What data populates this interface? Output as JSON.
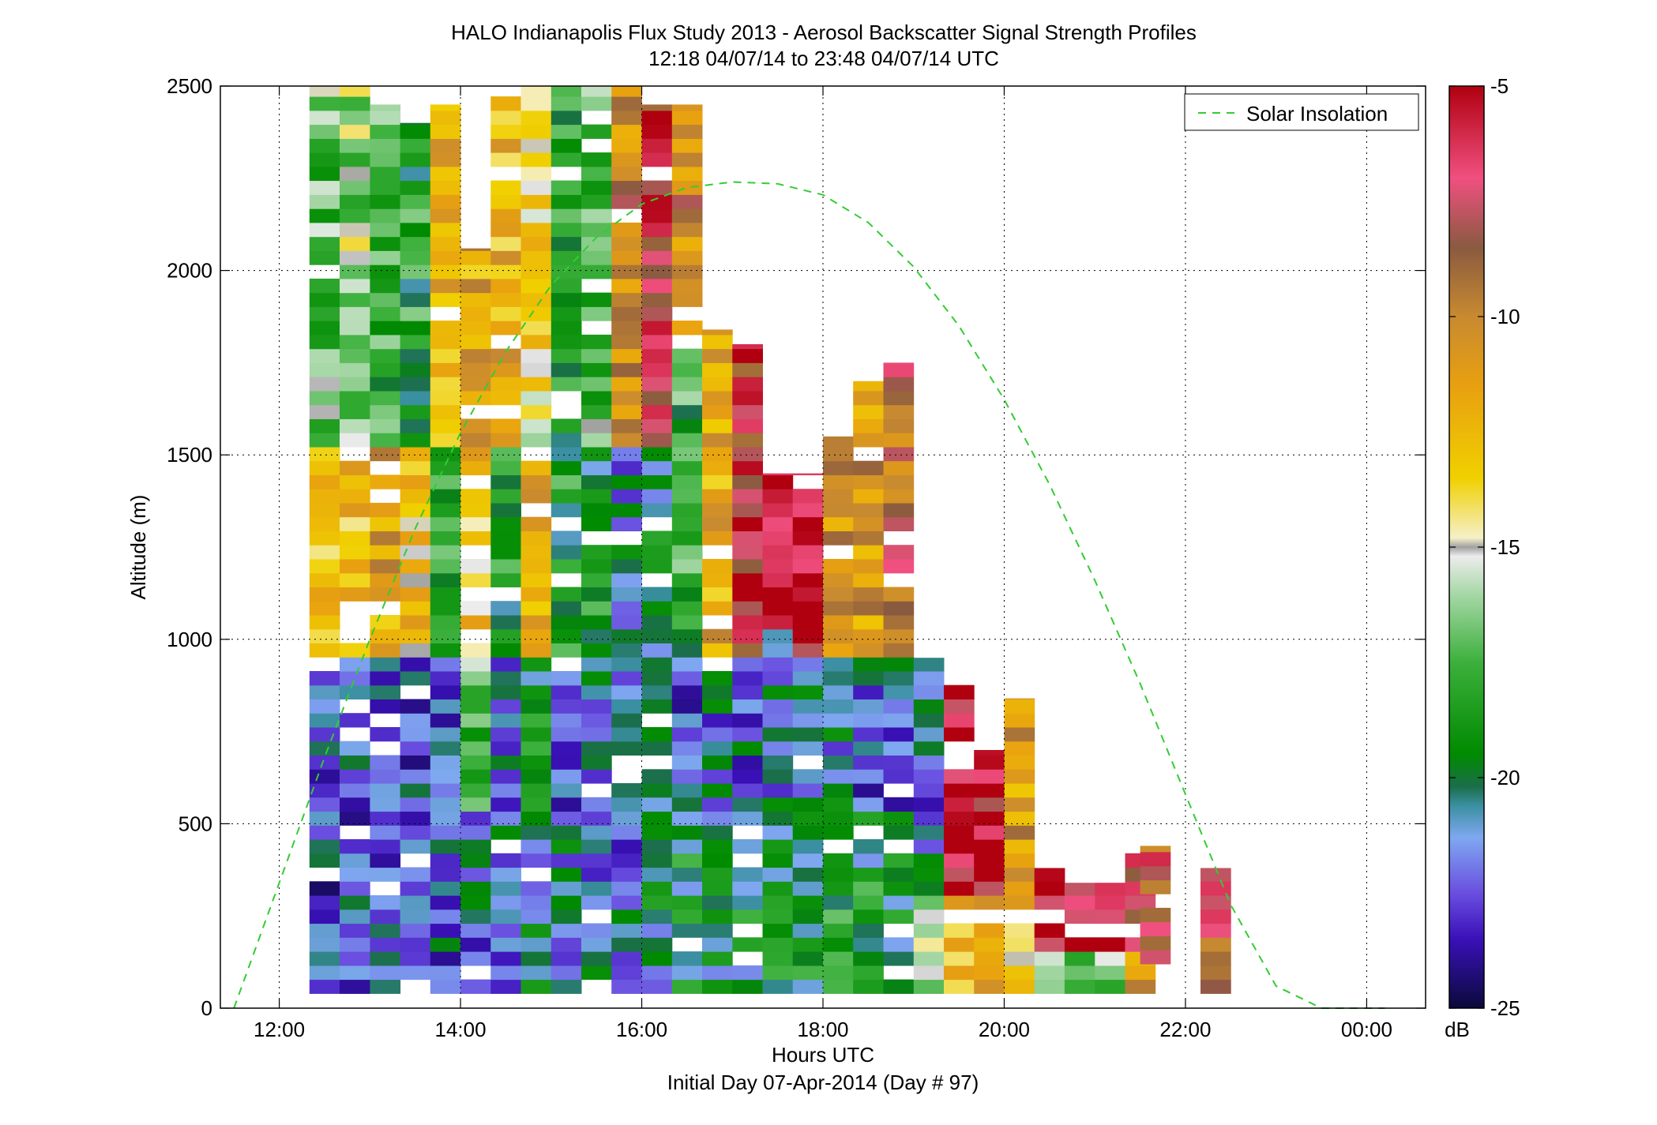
{
  "figure": {
    "title_line1": "HALO Indianapolis Flux Study 2013 - Aerosol Backscatter Signal Strength Profiles",
    "title_line2": "12:18 04/07/14 to 23:48 04/07/14  UTC",
    "xlabel": "Hours UTC",
    "xlabel2": "Initial Day 07-Apr-2014 (Day # 97)",
    "ylabel": "Altitude (m)",
    "legend_label": "Solar Insolation",
    "colorbar_unit": "dB"
  },
  "chart_data": {
    "type": "heatmap",
    "title": "HALO Indianapolis Flux Study 2013 - Aerosol Backscatter Signal Strength Profiles",
    "subtitle": "12:18 04/07/14 to 23:48 04/07/14  UTC",
    "xlabel": "Hours UTC",
    "ylabel": "Altitude (m)",
    "x_unit": "hours UTC (decimal, 24 = 00:00 next day)",
    "xlim": [
      11.35,
      24.65
    ],
    "ylim": [
      0,
      2500
    ],
    "x_ticks": [
      12,
      14,
      16,
      18,
      20,
      22,
      24
    ],
    "x_tick_labels": [
      "12:00",
      "14:00",
      "16:00",
      "18:00",
      "20:00",
      "22:00",
      "00:00"
    ],
    "y_ticks": [
      0,
      500,
      1000,
      1500,
      2000,
      2500
    ],
    "y_tick_labels": [
      "0",
      "500",
      "1000",
      "1500",
      "2000",
      "2500"
    ],
    "grid": true,
    "colorbar": {
      "label": "dB",
      "min": -25,
      "max": -5,
      "ticks": [
        -25,
        -20,
        -15,
        -10,
        -5
      ],
      "stops": [
        {
          "v": -25,
          "c": "#0a0a3a"
        },
        {
          "v": -23.5,
          "c": "#3a10b8"
        },
        {
          "v": -22.5,
          "c": "#6a4fe0"
        },
        {
          "v": -21.3,
          "c": "#7fa8f0"
        },
        {
          "v": -20.6,
          "c": "#3a8fa0"
        },
        {
          "v": -20.2,
          "c": "#1b6e4a"
        },
        {
          "v": -19.5,
          "c": "#008a00"
        },
        {
          "v": -17.5,
          "c": "#3cb03c"
        },
        {
          "v": -16,
          "c": "#a8d8a8"
        },
        {
          "v": -15.2,
          "c": "#ececec"
        },
        {
          "v": -15.0,
          "c": "#a0a0a0"
        },
        {
          "v": -14.8,
          "c": "#f5f0c8"
        },
        {
          "v": -13.5,
          "c": "#f0d000"
        },
        {
          "v": -11.5,
          "c": "#e8a010"
        },
        {
          "v": -10,
          "c": "#c88a30"
        },
        {
          "v": -8.5,
          "c": "#8a5a40"
        },
        {
          "v": -7,
          "c": "#f05080"
        },
        {
          "v": -5,
          "c": "#b00010"
        }
      ]
    },
    "bin_width_hours": 0.3333,
    "bin_height_m": 38,
    "ranges": [
      {
        "x": 12.5,
        "ytop": 2500,
        "ybot": 40,
        "seed": 1,
        "regions": [
          [
            500,
            -22.3
          ],
          [
            950,
            -22.3
          ],
          [
            1500,
            -13
          ],
          [
            2500,
            -17
          ]
        ]
      },
      {
        "x": 12.833,
        "ytop": 2500,
        "ybot": 40,
        "seed": 2,
        "regions": [
          [
            500,
            -22.2
          ],
          [
            950,
            -22
          ],
          [
            1500,
            -12.5
          ],
          [
            2500,
            -16
          ]
        ]
      },
      {
        "x": 13.167,
        "ytop": 2450,
        "ybot": 40,
        "seed": 3,
        "regions": [
          [
            500,
            -22.3
          ],
          [
            950,
            -22.2
          ],
          [
            1500,
            -11.5
          ],
          [
            2500,
            -18
          ]
        ]
      },
      {
        "x": 13.5,
        "ytop": 2400,
        "ybot": 40,
        "seed": 4,
        "regions": [
          [
            500,
            -22
          ],
          [
            950,
            -22
          ],
          [
            1500,
            -13
          ],
          [
            2500,
            -18.5
          ]
        ]
      },
      {
        "x": 13.833,
        "ytop": 2450,
        "ybot": 40,
        "seed": 5,
        "regions": [
          [
            500,
            -21.8
          ],
          [
            950,
            -22.3
          ],
          [
            1500,
            -18
          ],
          [
            2500,
            -12
          ]
        ]
      },
      {
        "x": 14.167,
        "ytop": 2060,
        "ybot": 40,
        "seed": 6,
        "regions": [
          [
            500,
            -21.5
          ],
          [
            950,
            -17
          ],
          [
            1500,
            -13
          ],
          [
            2100,
            -11.5
          ]
        ]
      },
      {
        "x": 14.5,
        "ytop": 2500,
        "ybot": 40,
        "seed": 7,
        "regions": [
          [
            500,
            -21.5
          ],
          [
            950,
            -22
          ],
          [
            1500,
            -19
          ],
          [
            2500,
            -12
          ]
        ]
      },
      {
        "x": 14.833,
        "ytop": 2500,
        "ybot": 40,
        "seed": 8,
        "regions": [
          [
            500,
            -20.5
          ],
          [
            950,
            -19.5
          ],
          [
            1500,
            -12
          ],
          [
            2500,
            -14
          ]
        ]
      },
      {
        "x": 15.167,
        "ytop": 2500,
        "ybot": 40,
        "seed": 9,
        "regions": [
          [
            500,
            -21.3
          ],
          [
            950,
            -22
          ],
          [
            1500,
            -19
          ],
          [
            2500,
            -19
          ]
        ]
      },
      {
        "x": 15.5,
        "ytop": 2500,
        "ybot": 40,
        "seed": 10,
        "regions": [
          [
            500,
            -21
          ],
          [
            950,
            -21.5
          ],
          [
            1500,
            -19
          ],
          [
            2500,
            -17
          ]
        ]
      },
      {
        "x": 15.833,
        "ytop": 2500,
        "ybot": 40,
        "seed": 11,
        "regions": [
          [
            500,
            -21.5
          ],
          [
            950,
            -21.8
          ],
          [
            1500,
            -21
          ],
          [
            2500,
            -10
          ]
        ]
      },
      {
        "x": 16.167,
        "ytop": 2450,
        "ybot": 40,
        "seed": 12,
        "regions": [
          [
            500,
            -20.5
          ],
          [
            950,
            -21.5
          ],
          [
            1500,
            -20
          ],
          [
            2500,
            -7
          ]
        ]
      },
      {
        "x": 16.5,
        "ytop": 2450,
        "ybot": 40,
        "seed": 13,
        "regions": [
          [
            500,
            -19.5
          ],
          [
            950,
            -21.8
          ],
          [
            1800,
            -18
          ],
          [
            2450,
            -10
          ]
        ]
      },
      {
        "x": 16.833,
        "ytop": 1840,
        "ybot": 40,
        "seed": 14,
        "regions": [
          [
            500,
            -19.8
          ],
          [
            950,
            -21.5
          ],
          [
            1840,
            -12
          ]
        ]
      },
      {
        "x": 17.167,
        "ytop": 1800,
        "ybot": 40,
        "seed": 15,
        "regions": [
          [
            500,
            -19.5
          ],
          [
            950,
            -21.5
          ],
          [
            1800,
            -7
          ]
        ]
      },
      {
        "x": 17.5,
        "ytop": 1450,
        "ybot": 40,
        "seed": 16,
        "regions": [
          [
            500,
            -19.5
          ],
          [
            1000,
            -21
          ],
          [
            1450,
            -5.5
          ]
        ]
      },
      {
        "x": 17.833,
        "ytop": 1450,
        "ybot": 40,
        "seed": 17,
        "regions": [
          [
            500,
            -19.2
          ],
          [
            950,
            -20.5
          ],
          [
            1450,
            -6
          ]
        ]
      },
      {
        "x": 18.167,
        "ytop": 1550,
        "ybot": 40,
        "seed": 18,
        "regions": [
          [
            500,
            -19
          ],
          [
            950,
            -21
          ],
          [
            1550,
            -11
          ]
        ]
      },
      {
        "x": 18.5,
        "ytop": 1700,
        "ybot": 40,
        "seed": 19,
        "regions": [
          [
            500,
            -19.3
          ],
          [
            950,
            -21.8
          ],
          [
            1700,
            -11
          ]
        ]
      },
      {
        "x": 18.833,
        "ytop": 1750,
        "ybot": 40,
        "seed": 20,
        "regions": [
          [
            500,
            -19.5
          ],
          [
            950,
            -21.6
          ],
          [
            1750,
            -9
          ]
        ]
      },
      {
        "x": 19.167,
        "ytop": 950,
        "ybot": 40,
        "seed": 21,
        "regions": [
          [
            300,
            -16
          ],
          [
            950,
            -21.5
          ]
        ]
      },
      {
        "x": 19.5,
        "ytop": 880,
        "ybot": 40,
        "seed": 22,
        "regions": [
          [
            300,
            -12
          ],
          [
            880,
            -5.5
          ]
        ]
      },
      {
        "x": 19.833,
        "ytop": 700,
        "ybot": 40,
        "seed": 23,
        "regions": [
          [
            300,
            -12
          ],
          [
            700,
            -6
          ]
        ]
      },
      {
        "x": 20.167,
        "ytop": 840,
        "ybot": 40,
        "seed": 24,
        "regions": [
          [
            300,
            -13
          ],
          [
            840,
            -11
          ]
        ]
      },
      {
        "x": 20.5,
        "ytop": 380,
        "ybot": 40,
        "seed": 25,
        "regions": [
          [
            150,
            -16
          ],
          [
            380,
            -5.5
          ]
        ]
      },
      {
        "x": 20.833,
        "ytop": 340,
        "ybot": 40,
        "seed": 26,
        "regions": [
          [
            150,
            -16.5
          ],
          [
            340,
            -5.5
          ]
        ]
      },
      {
        "x": 21.167,
        "ytop": 340,
        "ybot": 40,
        "seed": 27,
        "regions": [
          [
            150,
            -16
          ],
          [
            340,
            -5.5
          ]
        ]
      },
      {
        "x": 21.5,
        "ytop": 420,
        "ybot": 40,
        "seed": 28,
        "regions": [
          [
            150,
            -11
          ],
          [
            420,
            -7
          ]
        ]
      },
      {
        "x": 21.667,
        "ytop": 440,
        "ybot": 120,
        "seed": 29,
        "regions": [
          [
            440,
            -8
          ]
        ]
      },
      {
        "x": 22.333,
        "ytop": 380,
        "ybot": 40,
        "seed": 30,
        "regions": [
          [
            380,
            -8
          ]
        ]
      }
    ],
    "series": [
      {
        "name": "Solar Insolation",
        "style": "dashed",
        "color": "#33cc33",
        "x": [
          11.5,
          12.0,
          12.5,
          13.0,
          13.5,
          14.0,
          14.5,
          15.0,
          15.5,
          16.0,
          16.5,
          17.0,
          17.5,
          18.0,
          18.5,
          19.0,
          19.5,
          20.0,
          20.5,
          21.0,
          21.5,
          22.0,
          22.5,
          23.0,
          23.5,
          24.0,
          24.2
        ],
        "y": [
          0,
          340,
          680,
          1000,
          1300,
          1560,
          1780,
          1960,
          2090,
          2180,
          2225,
          2240,
          2235,
          2205,
          2130,
          2010,
          1850,
          1650,
          1420,
          1160,
          880,
          580,
          280,
          60,
          0,
          0,
          0
        ]
      }
    ]
  }
}
